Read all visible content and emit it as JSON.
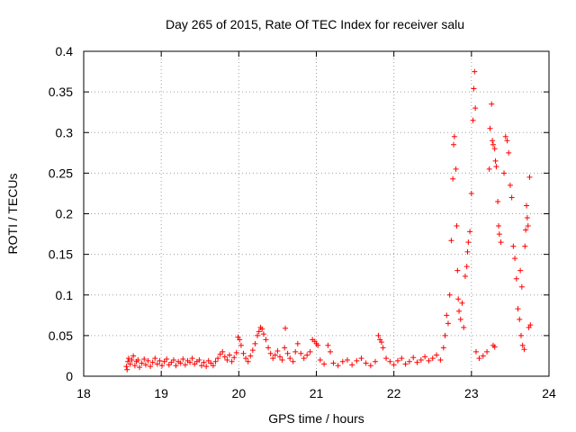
{
  "chart_data": {
    "type": "scatter",
    "title": "Day 265 of 2015, Rate Of TEC Index for receiver salu",
    "xlabel": "GPS time / hours",
    "ylabel": "ROTI / TECUs",
    "xlim": [
      18,
      24
    ],
    "ylim": [
      0,
      0.4
    ],
    "xticks": [
      18,
      19,
      20,
      21,
      22,
      23,
      24
    ],
    "yticks": [
      0,
      0.05,
      0.1,
      0.15,
      0.2,
      0.25,
      0.3,
      0.35,
      0.4
    ],
    "ytick_labels": [
      "0",
      "0.05",
      "0.1",
      "0.15",
      "0.2",
      "0.25",
      "0.3",
      "0.35",
      "0.4"
    ],
    "grid": true,
    "marker": "+",
    "color": "#ff0000",
    "series": [
      {
        "name": "ROTI",
        "points": [
          [
            18.55,
            0.012
          ],
          [
            18.56,
            0.008
          ],
          [
            18.57,
            0.018
          ],
          [
            18.58,
            0.022
          ],
          [
            18.6,
            0.015
          ],
          [
            18.62,
            0.02
          ],
          [
            18.64,
            0.025
          ],
          [
            18.66,
            0.013
          ],
          [
            18.68,
            0.018
          ],
          [
            18.7,
            0.02
          ],
          [
            18.72,
            0.011
          ],
          [
            18.75,
            0.016
          ],
          [
            18.78,
            0.021
          ],
          [
            18.8,
            0.014
          ],
          [
            18.83,
            0.019
          ],
          [
            18.86,
            0.012
          ],
          [
            18.89,
            0.017
          ],
          [
            18.92,
            0.022
          ],
          [
            18.95,
            0.015
          ],
          [
            18.98,
            0.019
          ],
          [
            19.01,
            0.013
          ],
          [
            19.04,
            0.018
          ],
          [
            19.07,
            0.021
          ],
          [
            19.1,
            0.014
          ],
          [
            19.13,
            0.017
          ],
          [
            19.16,
            0.02
          ],
          [
            19.19,
            0.013
          ],
          [
            19.22,
            0.018
          ],
          [
            19.25,
            0.016
          ],
          [
            19.28,
            0.021
          ],
          [
            19.31,
            0.014
          ],
          [
            19.34,
            0.019
          ],
          [
            19.37,
            0.017
          ],
          [
            19.4,
            0.022
          ],
          [
            19.43,
            0.015
          ],
          [
            19.46,
            0.018
          ],
          [
            19.49,
            0.02
          ],
          [
            19.52,
            0.013
          ],
          [
            19.55,
            0.017
          ],
          [
            19.58,
            0.012
          ],
          [
            19.61,
            0.019
          ],
          [
            19.64,
            0.016
          ],
          [
            19.67,
            0.013
          ],
          [
            19.7,
            0.018
          ],
          [
            19.73,
            0.022
          ],
          [
            19.76,
            0.027
          ],
          [
            19.79,
            0.03
          ],
          [
            19.82,
            0.024
          ],
          [
            19.85,
            0.02
          ],
          [
            19.88,
            0.026
          ],
          [
            19.91,
            0.018
          ],
          [
            19.94,
            0.023
          ],
          [
            19.97,
            0.029
          ],
          [
            19.99,
            0.048
          ],
          [
            20.01,
            0.045
          ],
          [
            20.03,
            0.038
          ],
          [
            20.06,
            0.028
          ],
          [
            20.09,
            0.022
          ],
          [
            20.12,
            0.018
          ],
          [
            20.15,
            0.025
          ],
          [
            20.18,
            0.032
          ],
          [
            20.21,
            0.04
          ],
          [
            20.24,
            0.05
          ],
          [
            20.26,
            0.055
          ],
          [
            20.28,
            0.06
          ],
          [
            20.3,
            0.058
          ],
          [
            20.32,
            0.052
          ],
          [
            20.35,
            0.045
          ],
          [
            20.38,
            0.035
          ],
          [
            20.41,
            0.028
          ],
          [
            20.44,
            0.022
          ],
          [
            20.47,
            0.026
          ],
          [
            20.5,
            0.031
          ],
          [
            20.53,
            0.024
          ],
          [
            20.56,
            0.02
          ],
          [
            20.59,
            0.035
          ],
          [
            20.6,
            0.059
          ],
          [
            20.63,
            0.028
          ],
          [
            20.66,
            0.022
          ],
          [
            20.7,
            0.018
          ],
          [
            20.73,
            0.03
          ],
          [
            20.76,
            0.04
          ],
          [
            20.8,
            0.028
          ],
          [
            20.84,
            0.022
          ],
          [
            20.88,
            0.026
          ],
          [
            20.92,
            0.03
          ],
          [
            20.95,
            0.045
          ],
          [
            20.98,
            0.043
          ],
          [
            21.0,
            0.04
          ],
          [
            21.02,
            0.038
          ],
          [
            21.05,
            0.02
          ],
          [
            21.1,
            0.015
          ],
          [
            21.15,
            0.038
          ],
          [
            21.18,
            0.03
          ],
          [
            21.22,
            0.016
          ],
          [
            21.28,
            0.013
          ],
          [
            21.34,
            0.018
          ],
          [
            21.4,
            0.02
          ],
          [
            21.46,
            0.014
          ],
          [
            21.52,
            0.019
          ],
          [
            21.58,
            0.022
          ],
          [
            21.64,
            0.016
          ],
          [
            21.7,
            0.013
          ],
          [
            21.76,
            0.018
          ],
          [
            21.8,
            0.05
          ],
          [
            21.82,
            0.045
          ],
          [
            21.84,
            0.042
          ],
          [
            21.86,
            0.035
          ],
          [
            21.9,
            0.022
          ],
          [
            21.95,
            0.018
          ],
          [
            22.0,
            0.014
          ],
          [
            22.05,
            0.019
          ],
          [
            22.1,
            0.022
          ],
          [
            22.15,
            0.015
          ],
          [
            22.2,
            0.018
          ],
          [
            22.25,
            0.023
          ],
          [
            22.3,
            0.017
          ],
          [
            22.35,
            0.02
          ],
          [
            22.4,
            0.024
          ],
          [
            22.45,
            0.019
          ],
          [
            22.5,
            0.022
          ],
          [
            22.55,
            0.026
          ],
          [
            22.6,
            0.02
          ],
          [
            22.64,
            0.035
          ],
          [
            22.66,
            0.05
          ],
          [
            22.68,
            0.075
          ],
          [
            22.7,
            0.065
          ],
          [
            22.72,
            0.1
          ],
          [
            22.74,
            0.167
          ],
          [
            22.76,
            0.243
          ],
          [
            22.77,
            0.285
          ],
          [
            22.78,
            0.295
          ],
          [
            22.8,
            0.255
          ],
          [
            22.81,
            0.185
          ],
          [
            22.82,
            0.13
          ],
          [
            22.83,
            0.095
          ],
          [
            22.84,
            0.08
          ],
          [
            22.86,
            0.07
          ],
          [
            22.88,
            0.09
          ],
          [
            22.9,
            0.06
          ],
          [
            22.92,
            0.123
          ],
          [
            22.94,
            0.135
          ],
          [
            22.95,
            0.153
          ],
          [
            22.96,
            0.165
          ],
          [
            22.98,
            0.178
          ],
          [
            23.0,
            0.225
          ],
          [
            23.02,
            0.315
          ],
          [
            23.03,
            0.354
          ],
          [
            23.04,
            0.375
          ],
          [
            23.05,
            0.33
          ],
          [
            23.06,
            0.03
          ],
          [
            23.1,
            0.022
          ],
          [
            23.15,
            0.025
          ],
          [
            23.2,
            0.03
          ],
          [
            23.23,
            0.255
          ],
          [
            23.24,
            0.305
          ],
          [
            23.26,
            0.335
          ],
          [
            23.27,
            0.29
          ],
          [
            23.28,
            0.285
          ],
          [
            23.3,
            0.28
          ],
          [
            23.31,
            0.265
          ],
          [
            23.32,
            0.258
          ],
          [
            23.34,
            0.215
          ],
          [
            23.35,
            0.185
          ],
          [
            23.36,
            0.175
          ],
          [
            23.38,
            0.165
          ],
          [
            23.3,
            0.036
          ],
          [
            23.28,
            0.038
          ],
          [
            23.42,
            0.25
          ],
          [
            23.44,
            0.295
          ],
          [
            23.46,
            0.29
          ],
          [
            23.48,
            0.275
          ],
          [
            23.5,
            0.235
          ],
          [
            23.52,
            0.22
          ],
          [
            23.54,
            0.16
          ],
          [
            23.56,
            0.145
          ],
          [
            23.58,
            0.12
          ],
          [
            23.6,
            0.083
          ],
          [
            23.62,
            0.07
          ],
          [
            23.64,
            0.05
          ],
          [
            23.66,
            0.038
          ],
          [
            23.68,
            0.033
          ],
          [
            23.69,
            0.16
          ],
          [
            23.7,
            0.18
          ],
          [
            23.71,
            0.21
          ],
          [
            23.72,
            0.195
          ],
          [
            23.73,
            0.185
          ],
          [
            23.74,
            0.06
          ],
          [
            23.75,
            0.245
          ],
          [
            23.76,
            0.063
          ],
          [
            23.65,
            0.11
          ],
          [
            23.63,
            0.13
          ]
        ]
      }
    ]
  }
}
